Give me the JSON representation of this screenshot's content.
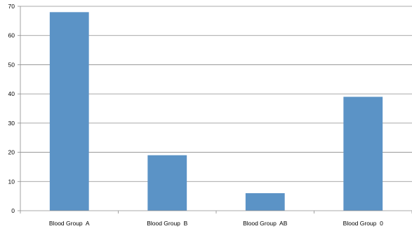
{
  "chart_data": {
    "type": "bar",
    "title": "",
    "xlabel": "",
    "ylabel": "",
    "categories": [
      "Blood Group  A",
      "Blood Group  B",
      "Blood Group  AB",
      "Blood Group  0"
    ],
    "values": [
      68,
      19,
      6,
      39
    ],
    "ylim": [
      0,
      70
    ],
    "yticks": [
      0,
      10,
      20,
      30,
      40,
      50,
      60,
      70
    ],
    "grid": true,
    "legend": "none",
    "bar_color": "#5b93c6",
    "grid_color": "#8c8c8c",
    "axis_color": "#8c8c8c"
  }
}
